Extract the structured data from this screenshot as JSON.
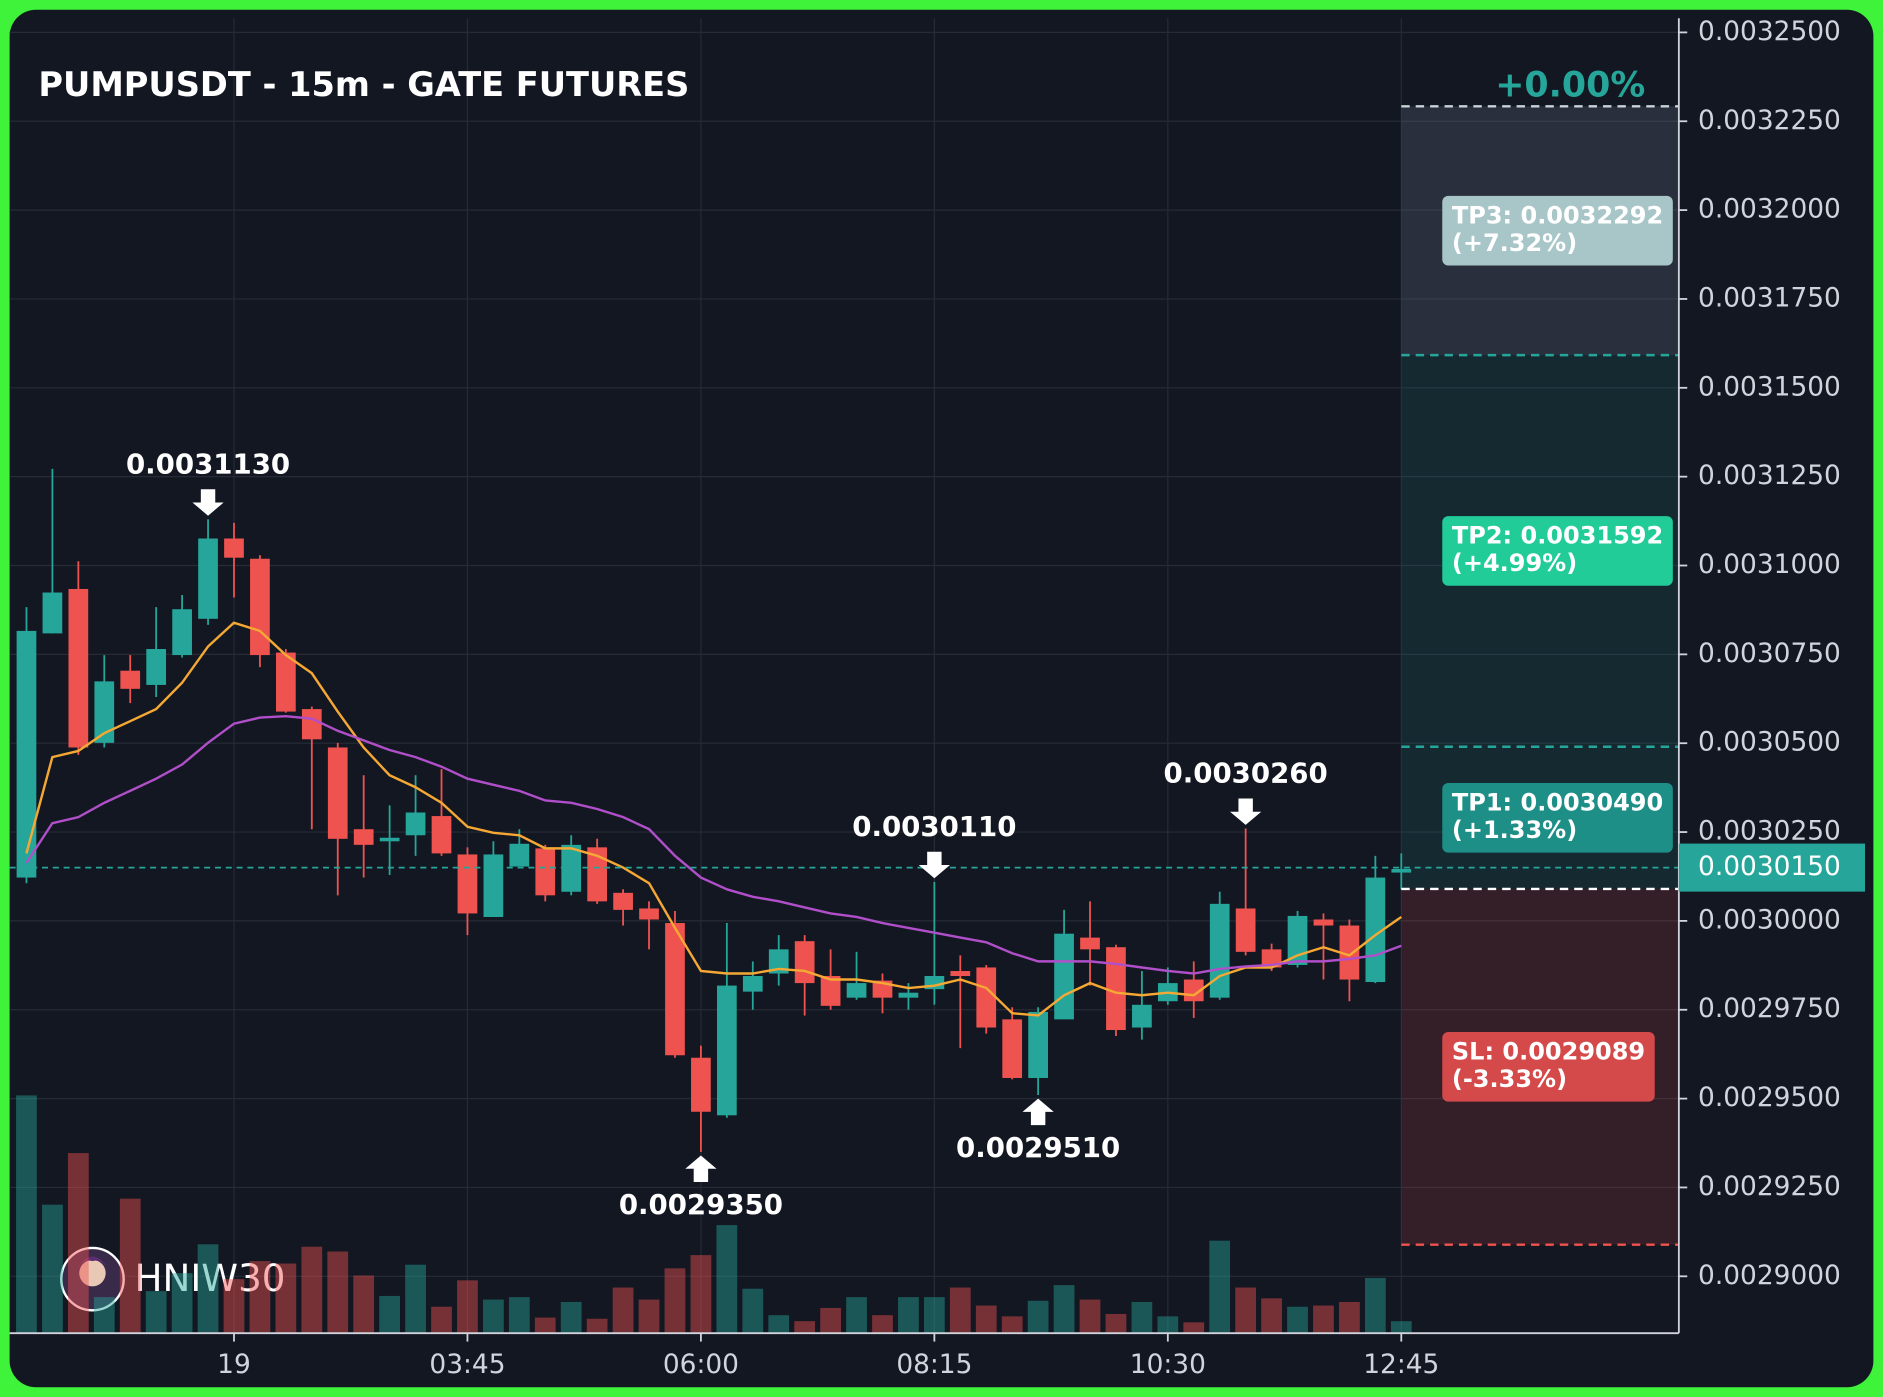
{
  "chart_data": {
    "type": "candlestick",
    "title": "PUMPUSDT - 15m - GATE FUTURES",
    "watermark": "HNIW30",
    "x": [
      0,
      1,
      2,
      3,
      4,
      5,
      6,
      7,
      8,
      9,
      10,
      11,
      12,
      13,
      14,
      15,
      16,
      17,
      18,
      19,
      20,
      21,
      22,
      23,
      24,
      25,
      26,
      27,
      28,
      29,
      30,
      31,
      32,
      33,
      34,
      35,
      36,
      37,
      38,
      39,
      40,
      41,
      42,
      43,
      44,
      45,
      46,
      47,
      48,
      49,
      50,
      51,
      52,
      53
    ],
    "open": [
      0.0030122,
      0.0030809,
      0.0030934,
      0.0030501,
      0.0030704,
      0.0030664,
      0.0030748,
      0.003085,
      0.0031076,
      0.0031019,
      0.0030755,
      0.0030596,
      0.0030488,
      0.0030258,
      0.0030224,
      0.0030241,
      0.0030295,
      0.0030187,
      0.0030011,
      0.0030153,
      0.0030204,
      0.0030082,
      0.0030207,
      0.0030079,
      0.0030035,
      0.0029994,
      0.0029615,
      0.0029453,
      0.0029801,
      0.0029852,
      0.0029943,
      0.0029845,
      0.0029784,
      0.0029832,
      0.0029784,
      0.0029808,
      0.0029859,
      0.0029869,
      0.0029723,
      0.0029558,
      0.0029723,
      0.0029953,
      0.0029926,
      0.00297,
      0.0029774,
      0.0029835,
      0.0029784,
      0.0030035,
      0.002992,
      0.0029876,
      0.0030004,
      0.0029987,
      0.0029828,
      0.0030136
    ],
    "high": [
      0.0030883,
      0.0031272,
      0.0031012,
      0.0030748,
      0.0030748,
      0.0030883,
      0.0030917,
      0.003113,
      0.003112,
      0.0031029,
      0.0030765,
      0.0030603,
      0.0030501,
      0.003041,
      0.0030325,
      0.003041,
      0.0030427,
      0.0030207,
      0.0030224,
      0.0030258,
      0.0030214,
      0.0030241,
      0.0030231,
      0.0030089,
      0.0030055,
      0.0030028,
      0.0029649,
      0.0029994,
      0.0029886,
      0.002996,
      0.002996,
      0.002992,
      0.0029913,
      0.0029852,
      0.0029825,
      0.003011,
      0.0029903,
      0.0029876,
      0.0029757,
      0.0029757,
      0.0030031,
      0.0030055,
      0.0029933,
      0.0029859,
      0.0029869,
      0.0029886,
      0.0030082,
      0.003026,
      0.0029936,
      0.0030028,
      0.0030021,
      0.0030004,
      0.0030183,
      0.003019
    ],
    "low": [
      0.0030106,
      0.0030809,
      0.0030467,
      0.0030488,
      0.0030613,
      0.003063,
      0.0030741,
      0.0030833,
      0.003091,
      0.0030714,
      0.0030586,
      0.0030258,
      0.0030072,
      0.0030122,
      0.0030129,
      0.0030183,
      0.0030183,
      0.002996,
      0.0030011,
      0.0030153,
      0.0030055,
      0.0030072,
      0.0030048,
      0.0029987,
      0.002992,
      0.0029615,
      0.002935,
      0.0029446,
      0.002975,
      0.0029818,
      0.0029734,
      0.002975,
      0.0029778,
      0.002974,
      0.002975,
      0.0029764,
      0.0029642,
      0.0029683,
      0.0029554,
      0.002951,
      0.0029723,
      0.0029818,
      0.0029676,
      0.0029666,
      0.0029764,
      0.0029727,
      0.0029778,
      0.0029903,
      0.0029859,
      0.0029869,
      0.0029835,
      0.0029774,
      0.0029825,
      0.0030089
    ],
    "close": [
      0.0030816,
      0.0030924,
      0.0030488,
      0.0030674,
      0.0030653,
      0.0030765,
      0.0030877,
      0.0031076,
      0.0031022,
      0.0030748,
      0.0030589,
      0.0030511,
      0.0030231,
      0.0030214,
      0.0030234,
      0.0030305,
      0.003019,
      0.0030021,
      0.0030187,
      0.0030217,
      0.0030072,
      0.0030214,
      0.0030055,
      0.0030031,
      0.0030004,
      0.0029622,
      0.0029463,
      0.0029818,
      0.0029845,
      0.002992,
      0.0029825,
      0.0029761,
      0.0029825,
      0.0029784,
      0.0029798,
      0.0029845,
      0.0029845,
      0.00297,
      0.0029558,
      0.0029744,
      0.0029964,
      0.002992,
      0.0029693,
      0.0029764,
      0.0029825,
      0.0029774,
      0.0030048,
      0.0029913,
      0.0029869,
      0.0030014,
      0.0029987,
      0.0029835,
      0.0030122,
      0.0030146
    ],
    "volume": [
      198,
      107,
      150,
      30,
      112,
      35,
      50,
      74,
      45,
      60,
      58,
      72,
      68,
      48,
      31,
      57,
      22,
      44,
      28,
      30,
      13,
      26,
      12,
      38,
      28,
      54,
      65,
      90,
      37,
      15,
      10,
      21,
      30,
      15,
      30,
      30,
      38,
      23,
      14,
      27,
      40,
      28,
      16,
      26,
      14,
      9,
      77,
      38,
      29,
      22,
      23,
      26,
      46,
      10
    ],
    "up_color": "#26a69a",
    "down_color": "#ef5350",
    "moving_averages": [
      {
        "color": "#f5a833",
        "values": [
          0.003019,
          0.0030461,
          0.0030478,
          0.0030528,
          0.0030562,
          0.0030596,
          0.003067,
          0.0030772,
          0.0030839,
          0.0030816,
          0.0030748,
          0.0030697,
          0.0030589,
          0.0030488,
          0.003041,
          0.0030376,
          0.0030332,
          0.0030265,
          0.0030248,
          0.0030241,
          0.0030204,
          0.0030204,
          0.0030183,
          0.003015,
          0.0030106,
          0.002998,
          0.0029859,
          0.0029852,
          0.0029852,
          0.0029865,
          0.0029859,
          0.0029835,
          0.0029835,
          0.0029825,
          0.0029811,
          0.0029818,
          0.0029835,
          0.0029811,
          0.002974,
          0.0029734,
          0.0029791,
          0.0029825,
          0.0029798,
          0.0029791,
          0.0029798,
          0.0029791,
          0.0029845,
          0.0029869,
          0.0029869,
          0.0029903,
          0.0029926,
          0.0029903,
          0.002996,
          0.0030011
        ]
      },
      {
        "color": "#b04fc9",
        "values": [
          0.0030163,
          0.0030275,
          0.0030292,
          0.0030332,
          0.0030366,
          0.00304,
          0.003044,
          0.0030501,
          0.0030555,
          0.0030572,
          0.0030576,
          0.0030569,
          0.0030535,
          0.0030508,
          0.0030481,
          0.0030461,
          0.0030434,
          0.00304,
          0.0030383,
          0.0030366,
          0.0030339,
          0.0030332,
          0.0030315,
          0.0030292,
          0.0030258,
          0.0030183,
          0.0030122,
          0.0030089,
          0.0030068,
          0.0030055,
          0.0030038,
          0.0030021,
          0.0030011,
          0.0029994,
          0.002998,
          0.0029967,
          0.0029953,
          0.002994,
          0.0029909,
          0.0029886,
          0.0029886,
          0.0029886,
          0.0029879,
          0.0029869,
          0.0029859,
          0.0029852,
          0.0029865,
          0.0029872,
          0.0029876,
          0.0029886,
          0.0029886,
          0.0029893,
          0.0029903,
          0.002993
        ]
      }
    ],
    "xlim": [
      -0.65,
      63.7
    ],
    "ylim": [
      0.002884,
      0.003254
    ],
    "xticks": [
      {
        "value": 8,
        "label": "19"
      },
      {
        "value": 17,
        "label": "03:45"
      },
      {
        "value": 26,
        "label": "06:00"
      },
      {
        "value": 35,
        "label": "08:15"
      },
      {
        "value": 44,
        "label": "10:30"
      },
      {
        "value": 53,
        "label": "12:45"
      }
    ],
    "yticks": [
      {
        "value": 0.00325,
        "label": "0.0032500"
      },
      {
        "value": 0.003225,
        "label": "0.0032250"
      },
      {
        "value": 0.0032,
        "label": "0.0032000"
      },
      {
        "value": 0.003175,
        "label": "0.0031750"
      },
      {
        "value": 0.00315,
        "label": "0.0031500"
      },
      {
        "value": 0.003125,
        "label": "0.0031250"
      },
      {
        "value": 0.0031,
        "label": "0.0031000"
      },
      {
        "value": 0.003075,
        "label": "0.0030750"
      },
      {
        "value": 0.00305,
        "label": "0.0030500"
      },
      {
        "value": 0.003025,
        "label": "0.0030250"
      },
      {
        "value": 0.003,
        "label": "0.0030000"
      },
      {
        "value": 0.002975,
        "label": "0.0029750"
      },
      {
        "value": 0.00295,
        "label": "0.0029500"
      },
      {
        "value": 0.002925,
        "label": "0.0029250"
      },
      {
        "value": 0.0029,
        "label": "0.0029000"
      }
    ],
    "grid": true,
    "last_price": {
      "value": 0.003015,
      "label": "0.0030150",
      "color": "#26a69a"
    },
    "markers": [
      {
        "index": 7,
        "value": 0.003113,
        "label": "0.0031130",
        "kind": "high"
      },
      {
        "index": 26,
        "value": 0.002935,
        "label": "0.0029350",
        "kind": "low"
      },
      {
        "index": 35,
        "value": 0.003011,
        "label": "0.0030110",
        "kind": "high"
      },
      {
        "index": 39,
        "value": 0.002951,
        "label": "0.0029510",
        "kind": "low"
      },
      {
        "index": 47,
        "value": 0.003026,
        "label": "0.0030260",
        "kind": "high"
      }
    ],
    "position": {
      "start": 53,
      "entry": 0.003009,
      "entry_color": "#ffffff",
      "change": "+0.00%",
      "change_color": "#26a69a",
      "levels": [
        {
          "label": "TP3: 0.0032292",
          "change": "(+7.32%)",
          "value": 0.0032292,
          "line": "#c9d3d6",
          "box": "#a8c6c8",
          "zone": "rgba(125,135,155,0.22)"
        },
        {
          "label": "TP2: 0.0031592",
          "change": "(+4.99%)",
          "value": 0.0031592,
          "line": "#26a69a",
          "box": "#21cc99",
          "zone": "rgba(38,166,154,0.13)"
        },
        {
          "label": "TP1: 0.0030490",
          "change": "(+1.33%)",
          "value": 0.003049,
          "line": "#26a69a",
          "box": "#1e8f87",
          "zone": "rgba(38,166,154,0.13)"
        },
        {
          "label": "SL: 0.0029089",
          "change": "(-3.33%)",
          "value": 0.0029089,
          "line": "#ef5350",
          "box": "#d44a4a",
          "zone": "rgba(239,83,80,0.15)"
        }
      ]
    }
  }
}
